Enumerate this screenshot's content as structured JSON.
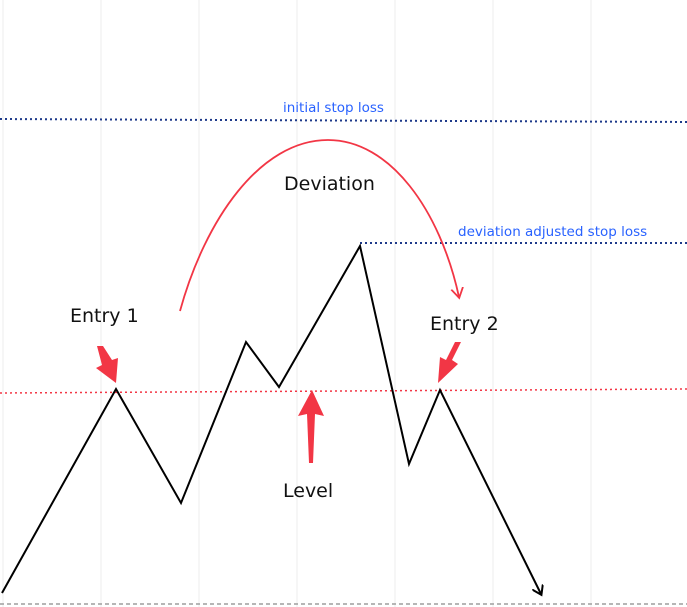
{
  "labels": {
    "initial_stop_loss": "initial stop loss",
    "deviation_adjusted_stop_loss": "deviation adjusted stop loss",
    "deviation": "Deviation",
    "entry_1": "Entry 1",
    "entry_2": "Entry 2",
    "level": "Level"
  },
  "colors": {
    "price_line": "#000000",
    "level_line": "#f23645",
    "stop_loss_line": "#1e3a8a",
    "stop_loss_text": "#2962ff",
    "arrow": "#f23645",
    "deviation_arc": "#f23645",
    "grid": "#eeeeee",
    "baseline": "#9e9e9e"
  }
}
